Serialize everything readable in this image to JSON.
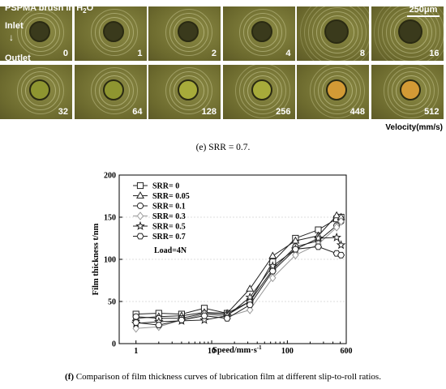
{
  "micrograph": {
    "title_prefix": "PSPMA brush in H",
    "title_sub": "2",
    "title_suffix": "O",
    "scale_bar": "250μm",
    "inlet": "Inlet",
    "outlet": "Outlet",
    "row1_labels": [
      "0",
      "1",
      "2",
      "4",
      "8",
      "16"
    ],
    "row2_labels": [
      "32",
      "64",
      "128",
      "256",
      "448",
      "512"
    ],
    "velocity_label": "Velocity(mm/s)",
    "colors": {
      "background": "#6c6a2e",
      "spot_dark": "#3a3a1c",
      "spot_green": "#a7ab3a",
      "spot_orange": "#d39a35"
    }
  },
  "caption_e": "(e) SRR = 0.7.",
  "caption_f": {
    "prefix": "(f)",
    "text": "Comparison of film thickness curves of lubrication film at different slip-to-roll ratios."
  },
  "chart_data": {
    "type": "line",
    "xscale": "log",
    "xlim": [
      0.6,
      600
    ],
    "ylim": [
      0,
      200
    ],
    "xlabel": "Speed/mm·s",
    "xlabel_sup": "-1",
    "ylabel": "Film thickness t/nm",
    "xticks": [
      1,
      10,
      100,
      600
    ],
    "yticks": [
      0,
      50,
      100,
      150,
      200
    ],
    "legend_position": "top-left",
    "annotation": "Load=4N",
    "x": [
      1,
      2,
      4,
      8,
      16,
      32,
      64,
      128,
      256,
      448,
      512
    ],
    "series": [
      {
        "name": "SRR= 0",
        "marker": "square",
        "values": [
          35,
          36,
          35,
          42,
          36,
          50,
          97,
          125,
          135,
          148,
          150
        ]
      },
      {
        "name": "SRR= 0.05",
        "marker": "triangle",
        "values": [
          30,
          32,
          33,
          37,
          36,
          65,
          104,
          122,
          128,
          152,
          150
        ]
      },
      {
        "name": "SRR= 0.1",
        "marker": "circle",
        "values": [
          32,
          30,
          30,
          36,
          34,
          50,
          88,
          115,
          122,
          140,
          145
        ]
      },
      {
        "name": "SRR= 0.3",
        "marker": "diamond",
        "values": [
          18,
          20,
          28,
          35,
          32,
          40,
          78,
          105,
          118,
          138,
          145
        ]
      },
      {
        "name": "SRR= 0.5",
        "marker": "star",
        "values": [
          24,
          26,
          27,
          28,
          33,
          55,
          92,
          112,
          125,
          126,
          117
        ]
      },
      {
        "name": "SRR= 0.7",
        "marker": "hexagon",
        "values": [
          25,
          22,
          28,
          33,
          30,
          46,
          86,
          112,
          115,
          107,
          105
        ]
      }
    ]
  }
}
